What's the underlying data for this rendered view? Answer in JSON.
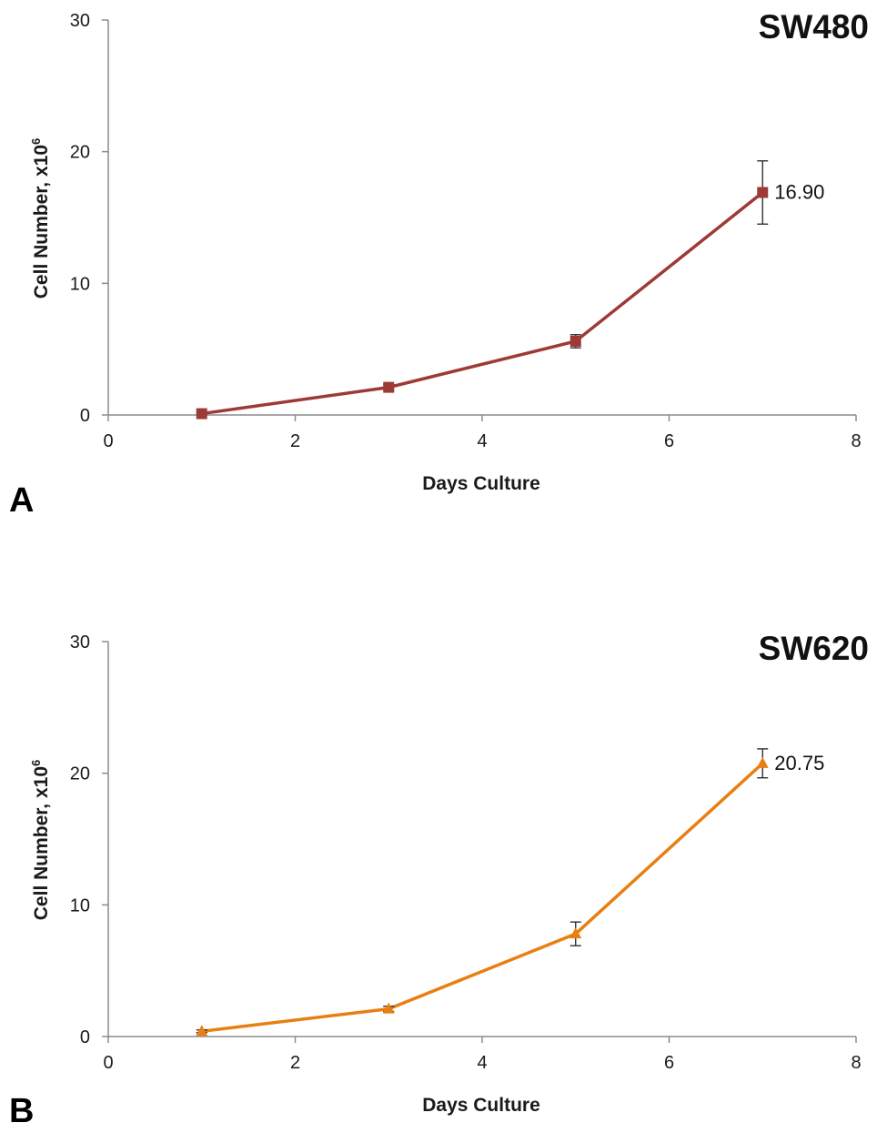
{
  "chart_data": [
    {
      "type": "line",
      "panel": "A",
      "title": "SW480",
      "xlabel": "Days Culture",
      "ylabel_prefix": "Cell Number, x10",
      "ylabel_sup": "6",
      "xlim": [
        0,
        8
      ],
      "ylim": [
        0,
        30
      ],
      "xticks": [
        "0",
        "2",
        "4",
        "6",
        "8"
      ],
      "yticks": [
        "0",
        "10",
        "20",
        "30"
      ],
      "grid": false,
      "marker": "square",
      "series": [
        {
          "color": "#9e3a36",
          "x": [
            1,
            3,
            5,
            7
          ],
          "y": [
            0.1,
            2.1,
            5.6,
            16.9
          ],
          "error": [
            0.1,
            0.2,
            0.5,
            2.4
          ]
        }
      ],
      "annotations": [
        {
          "x": 7,
          "y": 16.9,
          "text": "16.90"
        }
      ]
    },
    {
      "type": "line",
      "panel": "B",
      "title": "SW620",
      "xlabel": "Days Culture",
      "ylabel_prefix": "Cell Number, x10",
      "ylabel_sup": "6",
      "xlim": [
        0,
        8
      ],
      "ylim": [
        0,
        30
      ],
      "xticks": [
        "0",
        "2",
        "4",
        "6",
        "8"
      ],
      "yticks": [
        "0",
        "10",
        "20",
        "30"
      ],
      "grid": false,
      "marker": "triangle",
      "series": [
        {
          "color": "#e97f12",
          "x": [
            1,
            3,
            5,
            7
          ],
          "y": [
            0.4,
            2.1,
            7.8,
            20.75
          ],
          "error": [
            0.1,
            0.2,
            0.9,
            1.1
          ]
        }
      ],
      "annotations": [
        {
          "x": 7,
          "y": 20.75,
          "text": "20.75"
        }
      ]
    }
  ]
}
